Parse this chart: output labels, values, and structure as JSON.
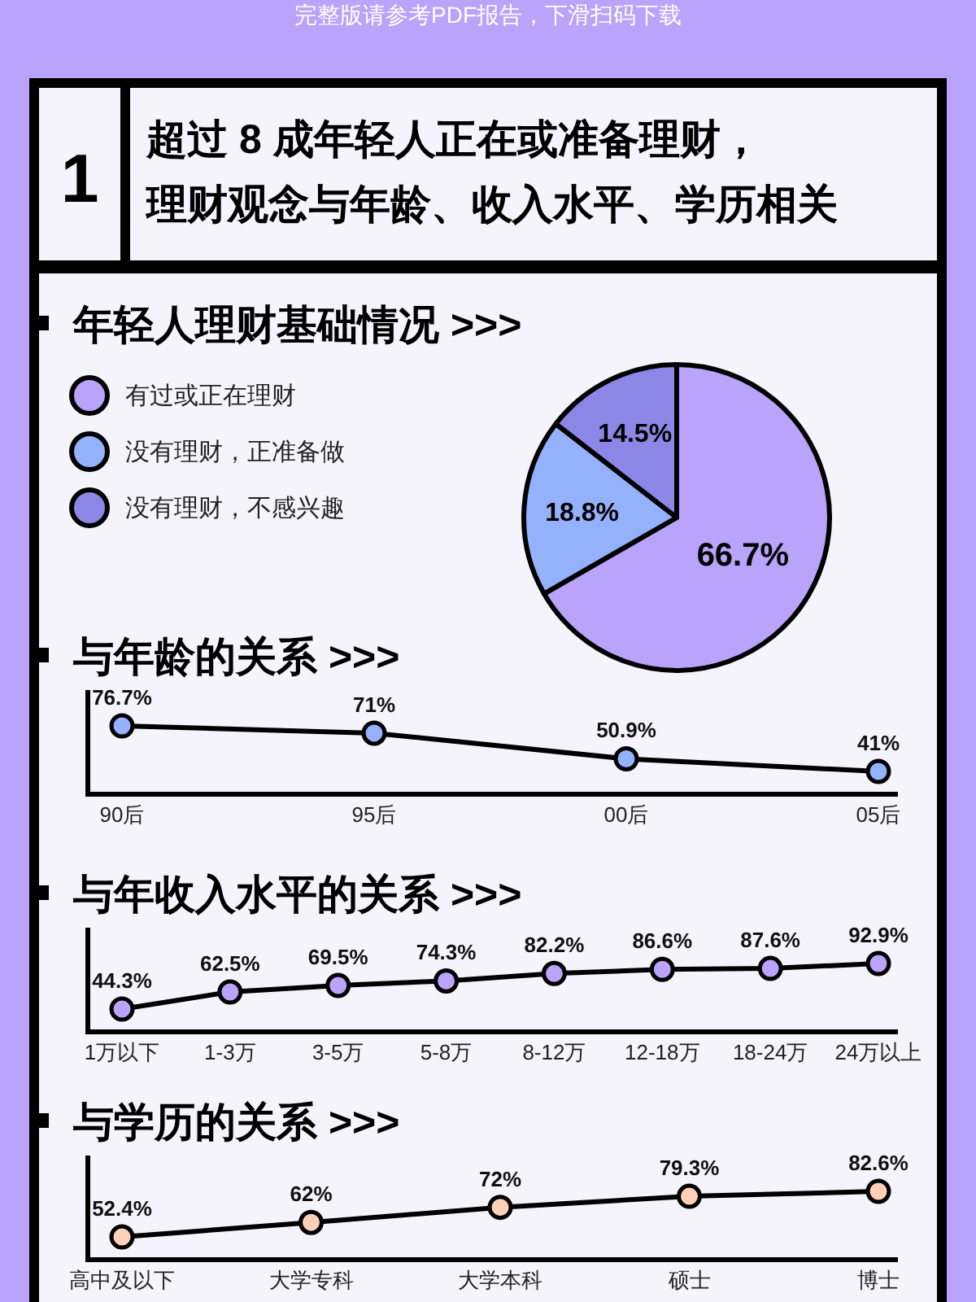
{
  "chart_data": [
    {
      "type": "other",
      "title": "超过 8 成年轻人正在或准备理财，理财观念与年龄、收入水平、学历相关",
      "annotations": [
        "完整版请参考PDF报告，下滑扫码下载",
        "1"
      ]
    },
    {
      "type": "pie",
      "title": "年轻人理财基础情况 >>>",
      "categories": [
        "有过或正在理财",
        "没有理财，正准备做",
        "没有理财，不感兴趣"
      ],
      "values": [
        66.7,
        18.8,
        14.5
      ],
      "value_labels": [
        "66.7%",
        "18.8%",
        "14.5%"
      ],
      "colors": [
        "#b9a3fb",
        "#94b1fb",
        "#8c87e6"
      ],
      "legend": "left"
    },
    {
      "type": "line",
      "title": "与年龄的关系 >>>",
      "categories": [
        "90后",
        "95后",
        "00后",
        "05后"
      ],
      "series": [
        {
          "color": "#94b1fb",
          "values": [
            76.7,
            71,
            50.9,
            41
          ],
          "value_labels": [
            "76.7%",
            "71%",
            "50.9%",
            "41%"
          ]
        }
      ],
      "marker": "circle"
    },
    {
      "type": "line",
      "title": "与年收入水平的关系 >>>",
      "categories": [
        "1万以下",
        "1-3万",
        "3-5万",
        "5-8万",
        "8-12万",
        "12-18万",
        "18-24万",
        "24万以上"
      ],
      "series": [
        {
          "color": "#b9a3fb",
          "values": [
            44.3,
            62.5,
            69.5,
            74.3,
            82.2,
            86.6,
            87.6,
            92.9
          ],
          "value_labels": [
            "44.3%",
            "62.5%",
            "69.5%",
            "74.3%",
            "82.2%",
            "86.6%",
            "87.6%",
            "92.9%"
          ]
        }
      ],
      "marker": "circle"
    },
    {
      "type": "line",
      "title": "与学历的关系 >>>",
      "categories": [
        "高中及以下",
        "大学专科",
        "大学本科",
        "硕士",
        "博士"
      ],
      "series": [
        {
          "color": "#fdd0b8",
          "values": [
            52.4,
            62,
            72,
            79.3,
            82.6
          ],
          "value_labels": [
            "52.4%",
            "62%",
            "72%",
            "79.3%",
            "82.6%"
          ]
        }
      ],
      "marker": "circle"
    }
  ]
}
